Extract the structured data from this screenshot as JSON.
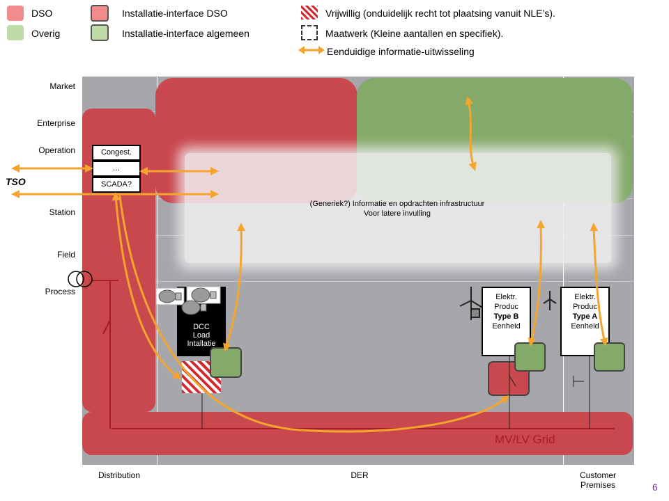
{
  "legend": {
    "dso": "DSO",
    "overig": "Overig",
    "iface_dso": "Installatie-interface  DSO",
    "iface_algemeen": "Installatie-interface  algemeen",
    "vrijwillig": "Vrijwillig (onduidelijk recht tot plaatsing vanuit NLE’s).",
    "maatwerk": "Maatwerk (Kleine aantallen en specifiek).",
    "eenduidig": "Eenduidige informatie-uitwisseling"
  },
  "zones": [
    "Market",
    "Enterprise",
    "Operation",
    "Station",
    "Field",
    "Process"
  ],
  "columns": [
    "Distribution",
    "DER",
    "Customer Premises"
  ],
  "tso_label": "TSO",
  "operation_stack": [
    "Congest.",
    "…",
    "SCADA?"
  ],
  "info_area": {
    "line1": "(Generiek?) Informatie en opdrachten infrastructuur",
    "line2": "Voor latere invulling"
  },
  "dcc_box": [
    "DCC",
    "Load",
    "Intallatie"
  ],
  "type_b_box": {
    "line1": "Elektr.",
    "line2": "Produc",
    "bold": "Type B",
    "line4": "Eenheid"
  },
  "type_a_box": {
    "line1": "Elektr.",
    "line2": "Produc",
    "bold": "Type A",
    "line4": "Eenheid"
  },
  "grid_label": "MV/LV Grid",
  "page_number": "6",
  "colors": {
    "dso": "#f28b8b",
    "dso_dark": "#c8484e",
    "overig": "#bfdca7",
    "overig_dark": "#84aa69",
    "panel": "#a6a7ab",
    "arrow": "#f5a52d",
    "grid_line": "#a51e22",
    "page_number": "#7030a0"
  }
}
